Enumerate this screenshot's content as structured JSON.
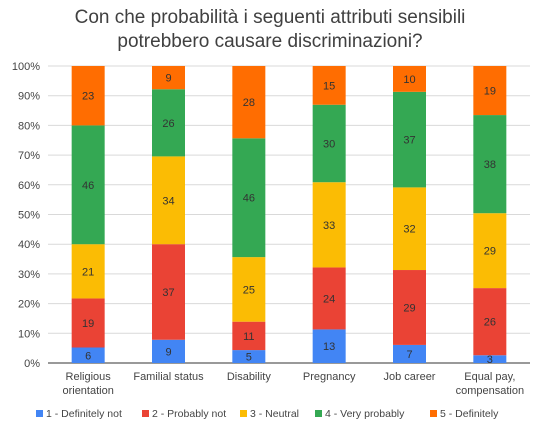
{
  "chart_data": {
    "type": "bar",
    "stacked": true,
    "normalized": true,
    "title_lines": [
      "Con che probabilità i seguenti attributi sensibili",
      "potrebbero causare discriminazioni?"
    ],
    "categories": [
      [
        "Religious",
        "orientation"
      ],
      [
        "Familial status"
      ],
      [
        "Disability"
      ],
      [
        "Pregnancy"
      ],
      [
        "Job career"
      ],
      [
        "Equal pay,",
        "compensation"
      ]
    ],
    "ylim": [
      0,
      100
    ],
    "yticks": [
      "0%",
      "10%",
      "20%",
      "30%",
      "40%",
      "50%",
      "60%",
      "70%",
      "80%",
      "90%",
      "100%"
    ],
    "grid": true,
    "legend_position": "bottom",
    "series": [
      {
        "name": "1 - Definitely not",
        "color": "#4285F4",
        "values": [
          6,
          9,
          5,
          13,
          7,
          3
        ]
      },
      {
        "name": "2 - Probably not",
        "color": "#EA4335",
        "values": [
          19,
          37,
          11,
          24,
          29,
          26
        ]
      },
      {
        "name": "3 - Neutral",
        "color": "#FBBC04",
        "values": [
          21,
          34,
          25,
          33,
          32,
          29
        ]
      },
      {
        "name": "4 - Very probably",
        "color": "#34A853",
        "values": [
          46,
          26,
          46,
          30,
          37,
          38
        ]
      },
      {
        "name": "5 - Definitely",
        "color": "#FF6D01",
        "values": [
          23,
          9,
          28,
          15,
          10,
          19
        ]
      }
    ]
  }
}
